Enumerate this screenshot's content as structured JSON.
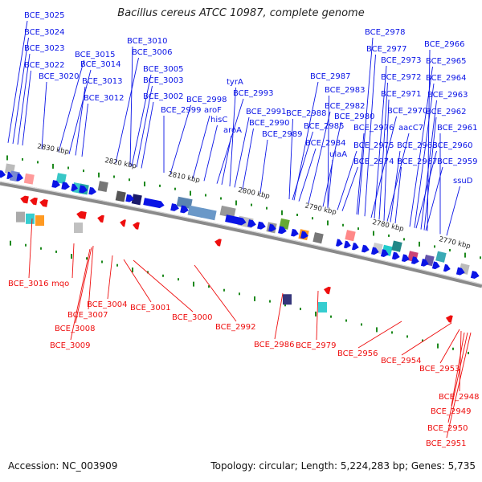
{
  "header": {
    "title": "Bacillus cereus ATCC 10987, complete genome"
  },
  "footer": {
    "accession": "Accession: NC_003909",
    "summary": "Topology: circular; Length: 5,224,283 bp; Genes: 5,735"
  },
  "colors": {
    "forward_gene": "#0a14e6",
    "reverse_gene": "#ee0e0e",
    "backbone": "#8a8a8a",
    "tick": "#1f8a1f"
  },
  "kbp_labels": [
    "2830 kbp",
    "2820 kbp",
    "2810 kbp",
    "2800 kbp",
    "2790 kbp",
    "2780 kbp",
    "2770 kbp"
  ],
  "forward_labels": [
    "BCE_3025",
    "BCE_3024",
    "BCE_3023",
    "BCE_3022",
    "BCE_3020",
    "BCE_3015",
    "BCE_3014",
    "BCE_3013",
    "BCE_3012",
    "BCE_3010",
    "BCE_3006",
    "BCE_3005",
    "BCE_3003",
    "BCE_3002",
    "BCE_2999",
    "BCE_2998",
    "aroF",
    "hisC",
    "aroA",
    "tyrA",
    "BCE_2993",
    "BCE_2991",
    "BCE_2990",
    "BCE_2989",
    "BCE_2988",
    "BCE_2987",
    "BCE_2985",
    "BCE_2984",
    "ulaA",
    "BCE_2983",
    "BCE_2982",
    "BCE_2980",
    "BCE_2978",
    "BCE_2977",
    "BCE_2976",
    "BCE_2975",
    "BCE_2974",
    "BCE_2973",
    "BCE_2972",
    "BCE_2971",
    "BCE_2970",
    "aacC7",
    "BCE_2968",
    "BCE_2967",
    "BCE_2966",
    "BCE_2965",
    "BCE_2964",
    "BCE_2963",
    "BCE_2962",
    "BCE_2961",
    "BCE_2960",
    "BCE_2959",
    "ssuD"
  ],
  "reverse_labels": [
    "BCE_3016",
    "mqo",
    "BCE_3007",
    "BCE_3008",
    "BCE_3009",
    "BCE_3004",
    "BCE_3001",
    "BCE_3000",
    "BCE_2992",
    "BCE_2986",
    "BCE_2979",
    "BCE_2956",
    "BCE_2954",
    "BCE_2953",
    "BCE_2948",
    "BCE_2949",
    "BCE_2950",
    "BCE_2951"
  ]
}
